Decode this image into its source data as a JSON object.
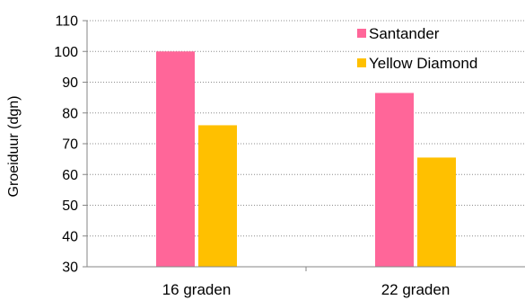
{
  "chart_data": {
    "type": "bar",
    "title": "",
    "xlabel": "",
    "ylabel": "Groeiduur (dgn)",
    "ylim": [
      30,
      110
    ],
    "yticks": [
      30,
      40,
      50,
      60,
      70,
      80,
      90,
      100,
      110
    ],
    "categories": [
      "16 graden",
      "22 graden"
    ],
    "series": [
      {
        "name": "Santander",
        "values": [
          100,
          86.5
        ],
        "color": "#ff6699"
      },
      {
        "name": "Yellow Diamond",
        "values": [
          76,
          65.5
        ],
        "color": "#ffc000"
      }
    ],
    "grid": true,
    "legend_position": "top-right"
  }
}
